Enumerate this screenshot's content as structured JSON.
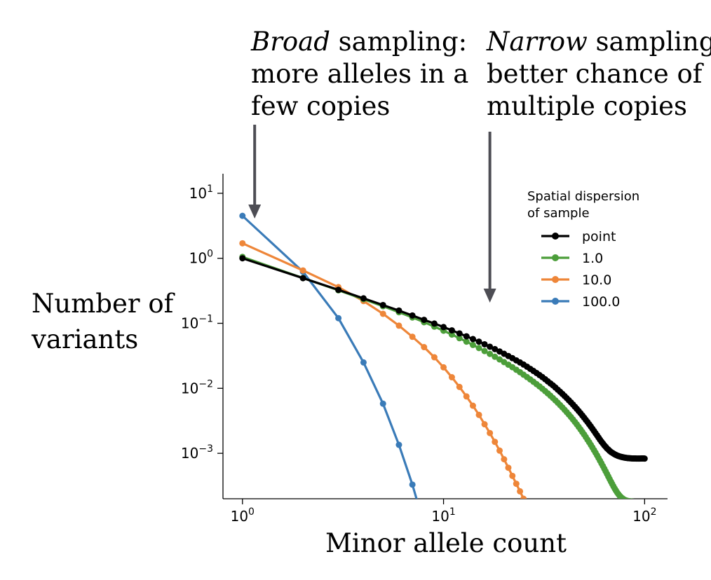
{
  "annotations": {
    "left": {
      "line1_italic": "Broad",
      "line1_rest": " sampling:",
      "line2": "more alleles in a",
      "line3": "few copies"
    },
    "right": {
      "line1_italic": "Narrow",
      "line1_rest": " sampling:",
      "line2": "better chance of",
      "line3": "multiple copies"
    },
    "ylabel_line1": "Number of",
    "ylabel_line2": "variants"
  },
  "chart_data": {
    "type": "line",
    "xlabel": "Minor allele count",
    "ylabel": "Number of variants",
    "x_scale": "log",
    "y_scale": "log",
    "xlim": [
      0.8,
      130
    ],
    "ylim": [
      0.0002,
      20
    ],
    "x_ticks": [
      {
        "base": "10",
        "exp": "0",
        "value": 1
      },
      {
        "base": "10",
        "exp": "1",
        "value": 10
      },
      {
        "base": "10",
        "exp": "2",
        "value": 100
      }
    ],
    "y_ticks": [
      {
        "base": "10",
        "exp": "1",
        "value": 10
      },
      {
        "base": "10",
        "exp": "0",
        "value": 1
      },
      {
        "base": "10",
        "exp": "−1",
        "value": 0.1
      },
      {
        "base": "10",
        "exp": "−2",
        "value": 0.01
      },
      {
        "base": "10",
        "exp": "−3",
        "value": 0.001
      }
    ],
    "legend": {
      "title_line1": "Spatial dispersion",
      "title_line2": "of sample",
      "placement": "upper right"
    },
    "annotation_arrows_x": [
      1.15,
      17
    ],
    "grid": false,
    "series": [
      {
        "name": "point",
        "color": "#000000",
        "x": [
          1,
          2,
          3,
          4,
          5,
          6,
          7,
          8,
          9,
          10,
          11,
          12,
          13,
          14,
          15,
          16,
          17,
          18,
          19,
          20,
          21,
          22,
          23,
          24,
          25,
          26,
          27,
          28,
          29,
          30,
          31,
          32,
          33,
          34,
          35,
          36,
          37,
          38,
          39,
          40,
          41,
          42,
          43,
          44,
          45,
          46,
          47,
          48,
          49,
          50,
          51,
          52,
          53,
          54,
          55,
          56,
          57,
          58,
          59,
          60,
          61,
          62,
          63,
          64,
          65,
          66,
          67,
          68,
          69,
          70,
          71,
          72,
          73,
          74,
          75,
          76,
          77,
          78,
          79,
          80,
          81,
          82,
          83,
          84,
          85,
          86,
          87,
          88,
          89,
          90,
          91,
          92,
          93,
          94,
          95,
          96,
          97,
          98,
          99,
          100
        ],
        "y": [
          1.0,
          0.495,
          0.327,
          0.242,
          0.191,
          0.157,
          0.132,
          0.113,
          0.0991,
          0.0875,
          0.0779,
          0.0699,
          0.0631,
          0.0572,
          0.0521,
          0.0476,
          0.0436,
          0.0401,
          0.0369,
          0.034,
          0.0314,
          0.0291,
          0.0269,
          0.025,
          0.0232,
          0.0215,
          0.0199,
          0.0185,
          0.0172,
          0.016,
          0.0149,
          0.0138,
          0.0128,
          0.0119,
          0.0111,
          0.0103,
          0.00952,
          0.00884,
          0.0082,
          0.00761,
          0.00706,
          0.00655,
          0.00607,
          0.00563,
          0.00521,
          0.00483,
          0.00447,
          0.00414,
          0.00383,
          0.00354,
          0.00327,
          0.00303,
          0.0028,
          0.00259,
          0.00239,
          0.00221,
          0.00204,
          0.00189,
          0.00175,
          0.00162,
          0.00151,
          0.00142,
          0.00133,
          0.00126,
          0.00119,
          0.00114,
          0.00109,
          0.00105,
          0.00102,
          0.000991,
          0.000966,
          0.000945,
          0.000927,
          0.000911,
          0.000898,
          0.000887,
          0.000877,
          0.000869,
          0.000862,
          0.000856,
          0.000851,
          0.000847,
          0.000843,
          0.00084,
          0.000838,
          0.000836,
          0.000834,
          0.000833,
          0.000832,
          0.000832,
          0.000831,
          0.000831,
          0.000831,
          0.000831,
          0.000831,
          0.000832,
          0.000832,
          0.000833,
          0.000833,
          0.00083
        ]
      },
      {
        "name": "1.0",
        "color": "#4c9e3a",
        "x": [
          1,
          2,
          3,
          4,
          5,
          6,
          7,
          8,
          9,
          10,
          11,
          12,
          13,
          14,
          15,
          16,
          17,
          18,
          19,
          20,
          21,
          22,
          23,
          24,
          25,
          26,
          27,
          28,
          29,
          30,
          31,
          32,
          33,
          34,
          35,
          36,
          37,
          38,
          39,
          40,
          41,
          42,
          43,
          44,
          45,
          46,
          47,
          48,
          49,
          50,
          51,
          52,
          53,
          54,
          55,
          56,
          57,
          58,
          59,
          60,
          61,
          62,
          63,
          64,
          65,
          66,
          67,
          68,
          69,
          70,
          71,
          72,
          73,
          74,
          75,
          76,
          77,
          78,
          79,
          80,
          81,
          82,
          83,
          84,
          85,
          86,
          87,
          88,
          89,
          90,
          91,
          92,
          93,
          94,
          95,
          96,
          97,
          98
        ],
        "y": [
          1.05,
          0.497,
          0.322,
          0.235,
          0.183,
          0.148,
          0.123,
          0.104,
          0.0889,
          0.0769,
          0.0671,
          0.059,
          0.0522,
          0.0465,
          0.0416,
          0.0374,
          0.0338,
          0.0306,
          0.0278,
          0.0253,
          0.0231,
          0.0211,
          0.0193,
          0.0177,
          0.0162,
          0.0149,
          0.0137,
          0.0126,
          0.0116,
          0.0107,
          0.00985,
          0.00907,
          0.00835,
          0.00769,
          0.00708,
          0.00652,
          0.006,
          0.00552,
          0.00508,
          0.00467,
          0.00429,
          0.00394,
          0.00362,
          0.00332,
          0.00304,
          0.00279,
          0.00255,
          0.00233,
          0.00213,
          0.00195,
          0.00178,
          0.00162,
          0.00148,
          0.00135,
          0.00123,
          0.00112,
          0.00102,
          0.00093,
          0.000846,
          0.00077,
          0.000701,
          0.000638,
          0.000581,
          0.000529,
          0.000482,
          0.000439,
          0.000401,
          0.000367,
          0.000337,
          0.00031,
          0.000287,
          0.000267,
          0.00025,
          0.000236,
          0.000224,
          0.000214,
          0.000206,
          0.0002,
          0.000195,
          0.000191,
          0.000188,
          0.000186,
          0.000184,
          0.000183,
          0.000182,
          0.000181,
          0.00018,
          0.00018,
          0.000179,
          0.000179,
          0.000179,
          0.000178,
          0.000178,
          0.000178,
          0.000178,
          0.000178,
          0.000178,
          0.000178
        ]
      },
      {
        "name": "10.0",
        "color": "#ee8639",
        "x": [
          1,
          2,
          3,
          4,
          5,
          6,
          7,
          8,
          9,
          10,
          11,
          12,
          13,
          14,
          15,
          16,
          17,
          18,
          19,
          20,
          21,
          22,
          23,
          24,
          25,
          26,
          27
        ],
        "y": [
          1.7,
          0.65,
          0.36,
          0.22,
          0.14,
          0.092,
          0.062,
          0.043,
          0.03,
          0.021,
          0.0148,
          0.0105,
          0.0075,
          0.0054,
          0.0039,
          0.0028,
          0.00205,
          0.0015,
          0.0011,
          0.00081,
          0.0006,
          0.00045,
          0.00034,
          0.00026,
          0.0002,
          0.000155,
          0.00012
        ]
      },
      {
        "name": "100.0",
        "color": "#3a7bb8",
        "x": [
          1,
          2,
          3,
          4,
          5,
          6,
          7,
          8
        ],
        "y": [
          4.5,
          0.62,
          0.12,
          0.025,
          0.0058,
          0.00135,
          0.00033,
          8e-05
        ]
      }
    ]
  }
}
